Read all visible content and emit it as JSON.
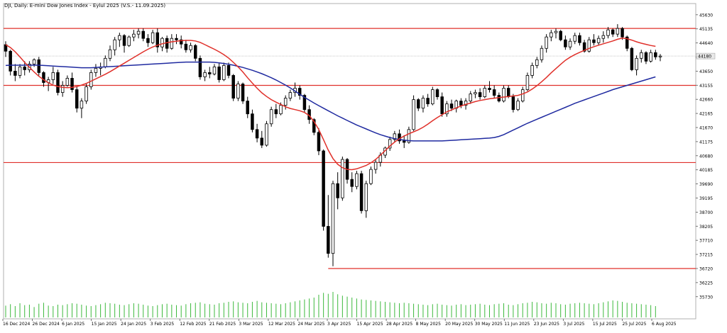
{
  "chart_data": {
    "type": "candlestick",
    "title": "DJI, Daily:  E-mini Dow Jones Index  - Eylul 2025 (V.S.- 11.09.2025)",
    "price_ticks": [
      "45630",
      "45135",
      "44640",
      "44145",
      "43650",
      "43155",
      "42660",
      "42165",
      "41670",
      "41175",
      "40680",
      "40185",
      "39690",
      "39195",
      "38700",
      "38205",
      "37710",
      "37215",
      "36720",
      "36225",
      "35730"
    ],
    "date_ticks": [
      "16 Dec 2024",
      "26 Dec 2024",
      "6 Jan 2025",
      "15 Jan 2025",
      "24 Jan 2025",
      "3 Feb 2025",
      "12 Feb 2025",
      "21 Feb 2025",
      "3 Mar 2025",
      "12 Mar 2025",
      "24 Mar 2025",
      "3 Apr 2025",
      "15 Apr 2025",
      "28 Apr 2025",
      "8 May 2025",
      "20 May 2025",
      "30 May 2025",
      "11 Jun 2025",
      "23 Jun 2025",
      "3 Jul 2025",
      "15 Jul 2025",
      "25 Jul 2025",
      "6 Aug 2025"
    ],
    "levels": [
      45150,
      43150,
      40440,
      36720
    ],
    "current_price": 44180,
    "ylim": [
      35500,
      45800
    ],
    "candles": [
      [
        44580,
        44700,
        44150,
        44350
      ],
      [
        44350,
        44400,
        43500,
        43650
      ],
      [
        43650,
        43900,
        43300,
        43500
      ],
      [
        43500,
        43900,
        43400,
        43800
      ],
      [
        43800,
        44000,
        43500,
        43700
      ],
      [
        43700,
        44000,
        43600,
        43900
      ],
      [
        43900,
        44100,
        43800,
        44050
      ],
      [
        44050,
        44150,
        43500,
        43600
      ],
      [
        43600,
        43650,
        43100,
        43250
      ],
      [
        43250,
        43450,
        42950,
        43350
      ],
      [
        43350,
        43800,
        43200,
        43600
      ],
      [
        43600,
        43700,
        42800,
        42900
      ],
      [
        42900,
        43300,
        42750,
        43150
      ],
      [
        43150,
        43500,
        43100,
        43400
      ],
      [
        43400,
        43600,
        42900,
        43000
      ],
      [
        43000,
        43100,
        42200,
        42350
      ],
      [
        42350,
        42700,
        42000,
        42600
      ],
      [
        42600,
        43200,
        42500,
        43100
      ],
      [
        43100,
        43700,
        43000,
        43600
      ],
      [
        43600,
        43900,
        43450,
        43750
      ],
      [
        43750,
        43950,
        43500,
        43800
      ],
      [
        43800,
        44200,
        43750,
        44100
      ],
      [
        44100,
        44550,
        44000,
        44400
      ],
      [
        44400,
        44850,
        44200,
        44750
      ],
      [
        44750,
        45000,
        44500,
        44900
      ],
      [
        44900,
        44950,
        44300,
        44550
      ],
      [
        44550,
        44900,
        44500,
        44850
      ],
      [
        44850,
        45100,
        44700,
        44950
      ],
      [
        44950,
        45150,
        44800,
        45050
      ],
      [
        45050,
        45150,
        44700,
        44800
      ],
      [
        44800,
        44950,
        44500,
        44650
      ],
      [
        44650,
        45100,
        44600,
        45000
      ],
      [
        45000,
        45150,
        44300,
        44500
      ],
      [
        44500,
        44850,
        44350,
        44800
      ],
      [
        44800,
        44900,
        44300,
        44450
      ],
      [
        44450,
        44950,
        44400,
        44800
      ],
      [
        44800,
        44950,
        44600,
        44750
      ],
      [
        44750,
        44900,
        44450,
        44600
      ],
      [
        44600,
        44750,
        44300,
        44400
      ],
      [
        44400,
        44650,
        44300,
        44550
      ],
      [
        44550,
        44600,
        44000,
        44100
      ],
      [
        44100,
        44200,
        43350,
        43450
      ],
      [
        43450,
        43700,
        43300,
        43600
      ],
      [
        43600,
        43800,
        43400,
        43550
      ],
      [
        43550,
        43900,
        43500,
        43800
      ],
      [
        43800,
        43950,
        43250,
        43350
      ],
      [
        43350,
        43950,
        43300,
        43850
      ],
      [
        43850,
        43950,
        43400,
        43500
      ],
      [
        43500,
        43550,
        42600,
        42700
      ],
      [
        42700,
        43300,
        42600,
        43200
      ],
      [
        43200,
        43250,
        42500,
        42600
      ],
      [
        42600,
        42750,
        42000,
        42150
      ],
      [
        42150,
        42300,
        41500,
        41600
      ],
      [
        41600,
        41800,
        41150,
        41300
      ],
      [
        41300,
        41550,
        40950,
        41050
      ],
      [
        41050,
        41900,
        41000,
        41800
      ],
      [
        41800,
        42400,
        41700,
        42300
      ],
      [
        42300,
        42500,
        42000,
        42150
      ],
      [
        42150,
        42550,
        42100,
        42450
      ],
      [
        42450,
        42800,
        42300,
        42700
      ],
      [
        42700,
        43000,
        42600,
        42900
      ],
      [
        42900,
        43250,
        42750,
        43050
      ],
      [
        43050,
        43150,
        42650,
        42800
      ],
      [
        42800,
        42850,
        42200,
        42300
      ],
      [
        42300,
        42450,
        41800,
        41950
      ],
      [
        41950,
        42000,
        41400,
        41500
      ],
      [
        41500,
        41650,
        40700,
        40850
      ],
      [
        40850,
        40900,
        38050,
        38200
      ],
      [
        38200,
        39300,
        37100,
        37250
      ],
      [
        37250,
        39800,
        36800,
        39700
      ],
      [
        39700,
        40100,
        38800,
        39200
      ],
      [
        39200,
        40650,
        39100,
        40550
      ],
      [
        40550,
        40600,
        39700,
        39850
      ],
      [
        39850,
        40100,
        39400,
        39600
      ],
      [
        39600,
        40150,
        39500,
        40050
      ],
      [
        40050,
        40150,
        38650,
        38750
      ],
      [
        38750,
        39800,
        38500,
        39700
      ],
      [
        39700,
        40300,
        39650,
        40200
      ],
      [
        40200,
        40550,
        40050,
        40450
      ],
      [
        40450,
        40800,
        40300,
        40700
      ],
      [
        40700,
        41000,
        40600,
        40950
      ],
      [
        40950,
        41350,
        40850,
        41250
      ],
      [
        41250,
        41550,
        41150,
        41450
      ],
      [
        41450,
        41600,
        41100,
        41200
      ],
      [
        41200,
        41400,
        40950,
        41150
      ],
      [
        41150,
        41700,
        41100,
        41600
      ],
      [
        41600,
        42800,
        41550,
        42650
      ],
      [
        42650,
        42700,
        42250,
        42350
      ],
      [
        42350,
        42800,
        42200,
        42700
      ],
      [
        42700,
        42850,
        42400,
        42500
      ],
      [
        42500,
        43100,
        42450,
        43000
      ],
      [
        43000,
        43050,
        42650,
        42750
      ],
      [
        42750,
        42900,
        42050,
        42150
      ],
      [
        42150,
        42600,
        42050,
        42500
      ],
      [
        42500,
        42650,
        42250,
        42350
      ],
      [
        42350,
        42650,
        42200,
        42600
      ],
      [
        42600,
        42700,
        42350,
        42450
      ],
      [
        42450,
        42700,
        42300,
        42600
      ],
      [
        42600,
        42950,
        42500,
        42850
      ],
      [
        42850,
        43000,
        42700,
        42900
      ],
      [
        42900,
        43050,
        42650,
        42750
      ],
      [
        42750,
        43150,
        42700,
        43050
      ],
      [
        43050,
        43300,
        42900,
        43000
      ],
      [
        43000,
        43150,
        42700,
        42800
      ],
      [
        42800,
        42900,
        42550,
        42600
      ],
      [
        42600,
        43150,
        42550,
        43050
      ],
      [
        43050,
        43150,
        42700,
        42750
      ],
      [
        42750,
        42850,
        42200,
        42300
      ],
      [
        42300,
        42700,
        42250,
        42600
      ],
      [
        42600,
        43100,
        42550,
        43000
      ],
      [
        43000,
        43600,
        42950,
        43500
      ],
      [
        43500,
        43950,
        43400,
        43850
      ],
      [
        43850,
        44150,
        43750,
        44050
      ],
      [
        44050,
        44550,
        43950,
        44450
      ],
      [
        44450,
        44950,
        44300,
        44850
      ],
      [
        44850,
        45100,
        44700,
        45000
      ],
      [
        45000,
        45150,
        44800,
        45050
      ],
      [
        45050,
        45100,
        44700,
        44750
      ],
      [
        44750,
        44900,
        44400,
        44500
      ],
      [
        44500,
        44800,
        44400,
        44700
      ],
      [
        44700,
        45000,
        44600,
        44900
      ],
      [
        44900,
        45000,
        44550,
        44650
      ],
      [
        44650,
        44750,
        44300,
        44350
      ],
      [
        44350,
        44850,
        44300,
        44750
      ],
      [
        44750,
        44950,
        44550,
        44650
      ],
      [
        44650,
        44900,
        44550,
        44800
      ],
      [
        44800,
        45050,
        44650,
        44900
      ],
      [
        44900,
        45200,
        44800,
        45100
      ],
      [
        45100,
        45150,
        44850,
        44950
      ],
      [
        44950,
        45300,
        44850,
        45150
      ],
      [
        45150,
        45200,
        44750,
        44850
      ],
      [
        44850,
        44900,
        44350,
        44450
      ],
      [
        44450,
        44500,
        43650,
        43700
      ],
      [
        43700,
        44200,
        43500,
        44100
      ],
      [
        44100,
        44400,
        43950,
        44300
      ],
      [
        44300,
        44350,
        43900,
        44000
      ],
      [
        44000,
        44400,
        43950,
        44300
      ],
      [
        44300,
        44400,
        44050,
        44150
      ],
      [
        44150,
        44250,
        44000,
        44180
      ]
    ],
    "ma_fast": [
      44580,
      44480,
      44330,
      44150,
      43960,
      43790,
      43620,
      43470,
      43350,
      43240,
      43160,
      43110,
      43080,
      43070,
      43080,
      43110,
      43160,
      43220,
      43300,
      43380,
      43460,
      43540,
      43630,
      43730,
      43830,
      43930,
      44030,
      44130,
      44230,
      44330,
      44420,
      44500,
      44560,
      44610,
      44650,
      44680,
      44700,
      44720,
      44730,
      44730,
      44710,
      44660,
      44580,
      44500,
      44420,
      44330,
      44230,
      44110,
      43960,
      43800,
      43620,
      43420,
      43230,
      43050,
      42890,
      42760,
      42650,
      42560,
      42480,
      42400,
      42340,
      42300,
      42260,
      42200,
      42090,
      41880,
      41600,
      41250,
      40880,
      40580,
      40380,
      40260,
      40200,
      40190,
      40220,
      40280,
      40340,
      40430,
      40550,
      40700,
      40860,
      41020,
      41160,
      41280,
      41370,
      41450,
      41520,
      41590,
      41680,
      41790,
      41910,
      42020,
      42120,
      42220,
      42290,
      42360,
      42430,
      42480,
      42530,
      42580,
      42620,
      42650,
      42680,
      42700,
      42720,
      42740,
      42760,
      42780,
      42800,
      42850,
      42920,
      43020,
      43140,
      43280,
      43430,
      43590,
      43740,
      43890,
      44030,
      44140,
      44230,
      44310,
      44380,
      44450,
      44510,
      44560,
      44610,
      44660,
      44710,
      44770,
      44810,
      44790,
      44740,
      44680,
      44630,
      44590,
      44550,
      44520
    ],
    "ma_slow": [
      43850,
      43860,
      43860,
      43860,
      43860,
      43860,
      43860,
      43860,
      43850,
      43840,
      43830,
      43820,
      43810,
      43800,
      43790,
      43780,
      43770,
      43770,
      43770,
      43780,
      43790,
      43800,
      43810,
      43820,
      43830,
      43840,
      43850,
      43860,
      43870,
      43880,
      43890,
      43900,
      43910,
      43920,
      43930,
      43940,
      43950,
      43960,
      43970,
      43970,
      43970,
      43970,
      43970,
      43970,
      43960,
      43940,
      43920,
      43890,
      43860,
      43820,
      43780,
      43730,
      43680,
      43620,
      43560,
      43490,
      43420,
      43340,
      43250,
      43160,
      43060,
      42950,
      42840,
      42730,
      42630,
      42530,
      42440,
      42350,
      42260,
      42170,
      42080,
      42000,
      41920,
      41840,
      41760,
      41690,
      41620,
      41550,
      41480,
      41420,
      41370,
      41320,
      41280,
      41250,
      41230,
      41210,
      41200,
      41200,
      41200,
      41200,
      41200,
      41200,
      41200,
      41210,
      41220,
      41230,
      41240,
      41250,
      41260,
      41270,
      41280,
      41290,
      41300,
      41320,
      41360,
      41420,
      41500,
      41580,
      41660,
      41740,
      41820,
      41890,
      41960,
      42030,
      42100,
      42170,
      42240,
      42310,
      42380,
      42450,
      42520,
      42580,
      42640,
      42700,
      42760,
      42820,
      42880,
      42940,
      43000,
      43050,
      43100,
      43150,
      43200,
      43250,
      43300,
      43350,
      43400,
      43450
    ],
    "volume": [
      25,
      28,
      24,
      30,
      26,
      27,
      22,
      29,
      31,
      25,
      24,
      27,
      26,
      28,
      30,
      29,
      27,
      25,
      24,
      26,
      28,
      31,
      30,
      29,
      27,
      26,
      28,
      30,
      29,
      27,
      25,
      24,
      26,
      28,
      29,
      27,
      26,
      25,
      28,
      30,
      31,
      32,
      29,
      28,
      27,
      30,
      31,
      33,
      34,
      32,
      31,
      30,
      33,
      35,
      32,
      31,
      30,
      29,
      28,
      30,
      32,
      34,
      36,
      38,
      40,
      42,
      48,
      52,
      50,
      54,
      49,
      46,
      44,
      42,
      40,
      38,
      37,
      36,
      35,
      34,
      33,
      32,
      31,
      30,
      31,
      30,
      29,
      28,
      27,
      26,
      28,
      29,
      27,
      26,
      25,
      27,
      28,
      26,
      27,
      28,
      29,
      27,
      26,
      28,
      29,
      30,
      27,
      26,
      28,
      30,
      31,
      33,
      32,
      30,
      29,
      31,
      30,
      28,
      27,
      29,
      30,
      31,
      30,
      29,
      28,
      30,
      32,
      34,
      36,
      35,
      33,
      31,
      30,
      29,
      28,
      27,
      26,
      24
    ]
  }
}
